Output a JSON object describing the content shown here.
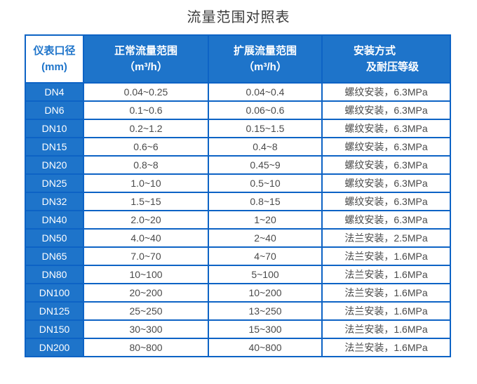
{
  "title": "流量范围对照表",
  "colors": {
    "primary_blue": "#1e74ca",
    "border_blue": "#0d63c5",
    "data_text": "#4a4a4a",
    "title_text": "#3c3c3c",
    "white": "#ffffff"
  },
  "header": {
    "col1": {
      "line1": "仪表口径",
      "line2": "(mm)"
    },
    "col2": {
      "line1": "正常流量范围",
      "line2": "（m³/h）"
    },
    "col3": {
      "line1": "扩展流量范围",
      "line2": "（m³/h）"
    },
    "col4": {
      "line1": "安装方式",
      "line2": "及耐压等级"
    }
  },
  "chart_data": {
    "type": "table",
    "title": "流量范围对照表",
    "columns": [
      "仪表口径(mm)",
      "正常流量范围（m³/h）",
      "扩展流量范围（m³/h）",
      "安装方式及耐压等级"
    ],
    "rows": [
      [
        "DN4",
        "0.04~0.25",
        "0.04~0.4",
        "螺纹安装，6.3MPa"
      ],
      [
        "DN6",
        "0.1~0.6",
        "0.06~0.6",
        "螺纹安装，6.3MPa"
      ],
      [
        "DN10",
        "0.2~1.2",
        "0.15~1.5",
        "螺纹安装，6.3MPa"
      ],
      [
        "DN15",
        "0.6~6",
        "0.4~8",
        "螺纹安装，6.3MPa"
      ],
      [
        "DN20",
        "0.8~8",
        "0.45~9",
        "螺纹安装，6.3MPa"
      ],
      [
        "DN25",
        "1.0~10",
        "0.5~10",
        "螺纹安装，6.3MPa"
      ],
      [
        "DN32",
        "1.5~15",
        "0.8~15",
        "螺纹安装，6.3MPa"
      ],
      [
        "DN40",
        "2.0~20",
        "1~20",
        "螺纹安装，6.3MPa"
      ],
      [
        "DN50",
        "4.0~40",
        "2~40",
        "法兰安装，2.5MPa"
      ],
      [
        "DN65",
        "7.0~70",
        "4~70",
        "法兰安装，1.6MPa"
      ],
      [
        "DN80",
        "10~100",
        "5~100",
        "法兰安装，1.6MPa"
      ],
      [
        "DN100",
        "20~200",
        "10~200",
        "法兰安装，1.6MPa"
      ],
      [
        "DN125",
        "25~250",
        "13~250",
        "法兰安装，1.6MPa"
      ],
      [
        "DN150",
        "30~300",
        "15~300",
        "法兰安装，1.6MPa"
      ],
      [
        "DN200",
        "80~800",
        "40~800",
        "法兰安装，1.6MPa"
      ]
    ]
  }
}
